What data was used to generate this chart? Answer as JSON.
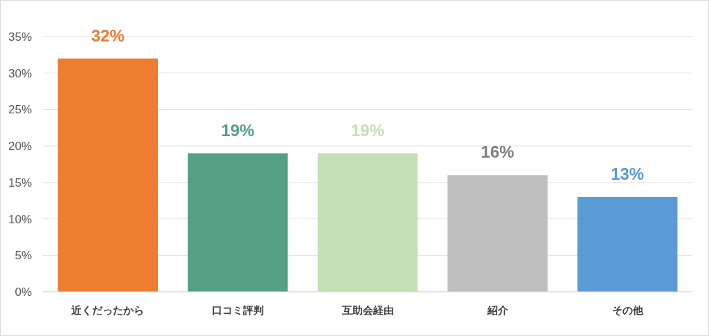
{
  "chart_data": {
    "type": "bar",
    "categories": [
      "近くだったから",
      "口コミ評判",
      "互助会経由",
      "紹介",
      "その他"
    ],
    "values": [
      32,
      19,
      19,
      16,
      13
    ],
    "colors": [
      "#ed7d31",
      "#55a085",
      "#c5e0b4",
      "#bfbfbf",
      "#5b9bd5"
    ],
    "value_labels": [
      "32%",
      "19%",
      "19%",
      "16%",
      "13%"
    ],
    "ylim": [
      0,
      35
    ],
    "yticks": [
      {
        "value": 0,
        "label": "0%"
      },
      {
        "value": 5,
        "label": "5%"
      },
      {
        "value": 10,
        "label": "10%"
      },
      {
        "value": 15,
        "label": "15%"
      },
      {
        "value": 20,
        "label": "20%"
      },
      {
        "value": 25,
        "label": "25%"
      },
      {
        "value": 30,
        "label": "30%"
      },
      {
        "value": 35,
        "label": "35%"
      }
    ],
    "grid": "y"
  }
}
